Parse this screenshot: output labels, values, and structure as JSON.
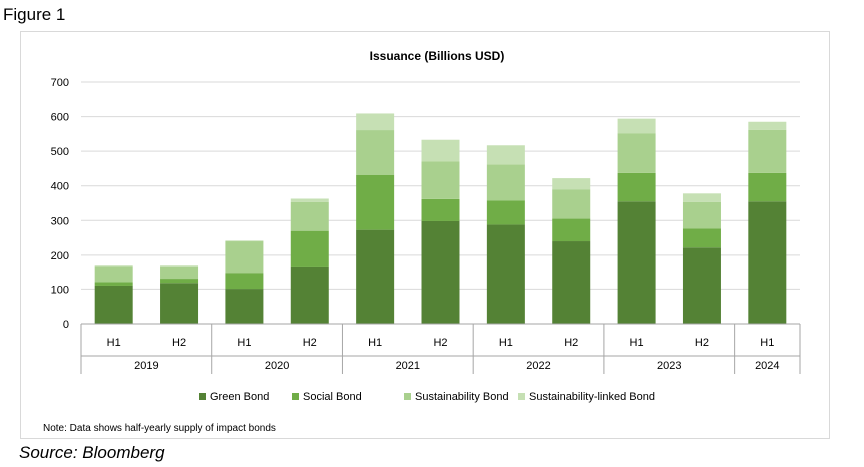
{
  "figure_label": "Figure 1",
  "source": "Source: Bloomberg",
  "note": "Note: Data shows half-yearly supply of impact bonds",
  "colors": {
    "green_bond": "#548235",
    "social_bond": "#70ad47",
    "sustainability_bond": "#a9d08e",
    "sustainability_linked_bond": "#c6e0b4"
  },
  "chart_data": {
    "type": "bar",
    "stacked": true,
    "title": "Issuance (Billions USD)",
    "ylim": [
      0,
      700
    ],
    "yticks": [
      0,
      100,
      200,
      300,
      400,
      500,
      600,
      700
    ],
    "grid": true,
    "legend_position": "bottom",
    "categories": [
      "H1",
      "H2",
      "H1",
      "H2",
      "H1",
      "H2",
      "H1",
      "H2",
      "H1",
      "H2",
      "H1"
    ],
    "groups": [
      {
        "label": "2019",
        "count": 2
      },
      {
        "label": "2020",
        "count": 2
      },
      {
        "label": "2021",
        "count": 2
      },
      {
        "label": "2022",
        "count": 2
      },
      {
        "label": "2023",
        "count": 2
      },
      {
        "label": "2024",
        "count": 1
      }
    ],
    "series": [
      {
        "name": "Green Bond",
        "color": "#548235",
        "values": [
          110,
          118,
          101,
          165,
          273,
          298,
          288,
          240,
          355,
          222,
          355
        ]
      },
      {
        "name": "Social Bond",
        "color": "#70ad47",
        "values": [
          10,
          12,
          46,
          105,
          158,
          64,
          70,
          65,
          82,
          55,
          82
        ]
      },
      {
        "name": "Sustainability Bond",
        "color": "#a9d08e",
        "values": [
          47,
          35,
          93,
          83,
          130,
          108,
          104,
          85,
          115,
          76,
          125
        ]
      },
      {
        "name": "Sustainability-linked Bond",
        "color": "#c6e0b4",
        "values": [
          3,
          5,
          2,
          10,
          48,
          63,
          55,
          32,
          42,
          25,
          23
        ]
      }
    ]
  }
}
